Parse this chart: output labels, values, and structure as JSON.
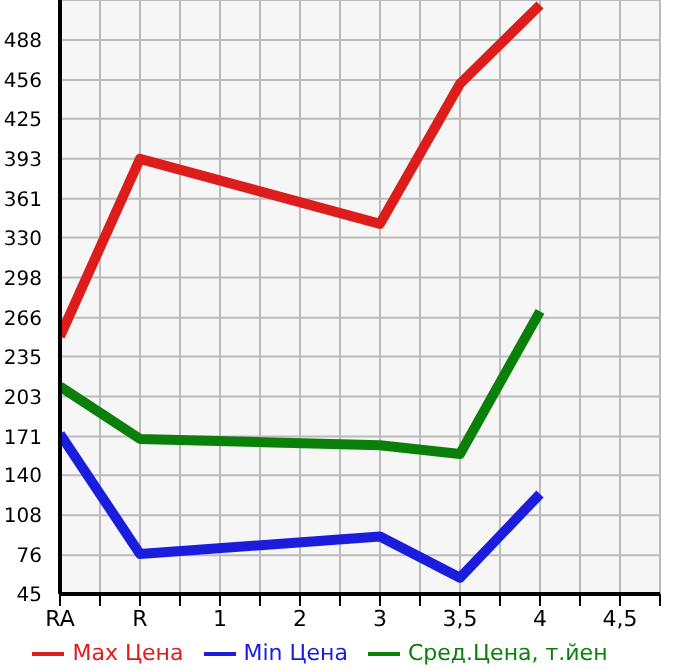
{
  "chart_data": {
    "type": "line",
    "categories": [
      "RA",
      "R",
      "1",
      "2",
      "3",
      "3,5",
      "4",
      "4,5"
    ],
    "series": [
      {
        "name": "Max Цена",
        "color": "#dd1c1c",
        "values": [
          251,
          393,
          null,
          null,
          341,
          453,
          516,
          null
        ]
      },
      {
        "name": "Min Цена",
        "color": "#1c1cdd",
        "values": [
          173,
          77,
          null,
          null,
          91,
          58,
          125,
          null
        ]
      },
      {
        "name": "Сред.Цена, т.йен",
        "color": "#0a800a",
        "values": [
          211,
          169,
          null,
          null,
          164,
          157,
          271,
          null
        ]
      }
    ],
    "ylim": [
      45,
      520
    ],
    "yticks": [
      45,
      76,
      108,
      140,
      171,
      203,
      235,
      266,
      298,
      330,
      361,
      393,
      425,
      456,
      488
    ],
    "grid": true,
    "legend": "bottom",
    "marker": "none",
    "line_style": "solid"
  }
}
